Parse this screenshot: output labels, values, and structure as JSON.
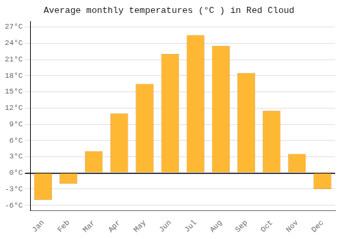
{
  "chart_data": {
    "type": "bar",
    "title": "Average monthly temperatures (°C ) in Red Cloud",
    "categories": [
      "Jan",
      "Feb",
      "Mar",
      "Apr",
      "May",
      "Jun",
      "Jul",
      "Aug",
      "Sep",
      "Oct",
      "Nov",
      "Dec"
    ],
    "values": [
      -5.0,
      -2.0,
      4.0,
      11.0,
      16.5,
      22.0,
      25.5,
      23.5,
      18.5,
      11.5,
      3.5,
      -3.0
    ],
    "color": "#FFB833",
    "ylim": [
      -7,
      28
    ],
    "yticks": [
      {
        "value": -6,
        "label": "-6°C"
      },
      {
        "value": -3,
        "label": "-3°C"
      },
      {
        "value": 0,
        "label": "0°C"
      },
      {
        "value": 3,
        "label": "3°C"
      },
      {
        "value": 6,
        "label": "6°C"
      },
      {
        "value": 9,
        "label": "9°C"
      },
      {
        "value": 12,
        "label": "12°C"
      },
      {
        "value": 15,
        "label": "15°C"
      },
      {
        "value": 18,
        "label": "18°C"
      },
      {
        "value": 21,
        "label": "21°C"
      },
      {
        "value": 24,
        "label": "24°C"
      },
      {
        "value": 27,
        "label": "27°C"
      }
    ],
    "grid": true
  }
}
